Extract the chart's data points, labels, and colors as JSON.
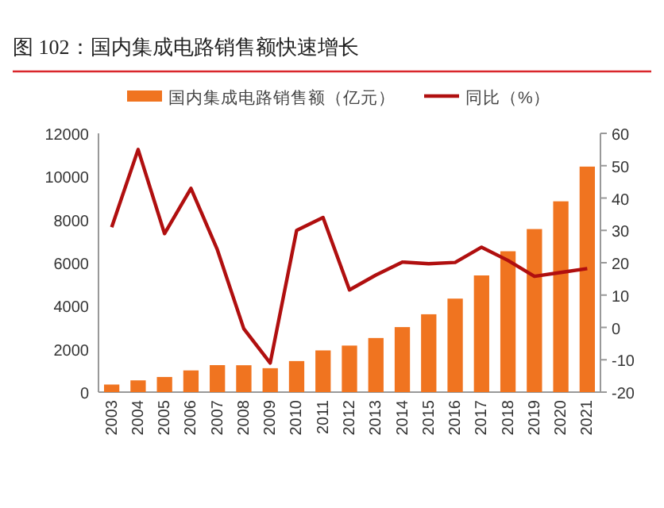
{
  "chart_data": {
    "type": "bar",
    "title": "图 102：国内集成电路销售额快速增长",
    "categories": [
      "2003",
      "2004",
      "2005",
      "2006",
      "2007",
      "2008",
      "2009",
      "2010",
      "2011",
      "2012",
      "2013",
      "2014",
      "2015",
      "2016",
      "2017",
      "2018",
      "2019",
      "2020",
      "2021"
    ],
    "series": [
      {
        "name": "国内集成电路销售额（亿元）",
        "color": "#f07420",
        "values": [
          351,
          545,
          702,
          1006,
          1251,
          1246,
          1109,
          1440,
          1934,
          2158,
          2509,
          3015,
          3610,
          4336,
          5411,
          6532,
          7562,
          8848,
          10458
        ]
      },
      {
        "name": "同比（%）",
        "type": "line",
        "axis": "y2",
        "color": "#b00f0f",
        "values": [
          31,
          55,
          29,
          43,
          24,
          -0.4,
          -11,
          30,
          34,
          11.6,
          16.2,
          20.2,
          19.7,
          20.1,
          24.8,
          20.7,
          15.8,
          17,
          18.2
        ]
      }
    ],
    "ylim": [
      0,
      12000
    ],
    "yticks": [
      0,
      2000,
      4000,
      6000,
      8000,
      10000,
      12000
    ],
    "y2lim": [
      -20,
      60
    ],
    "y2ticks": [
      -20,
      -10,
      0,
      10,
      20,
      30,
      40,
      50,
      60
    ],
    "legend": "top",
    "grid": false
  }
}
